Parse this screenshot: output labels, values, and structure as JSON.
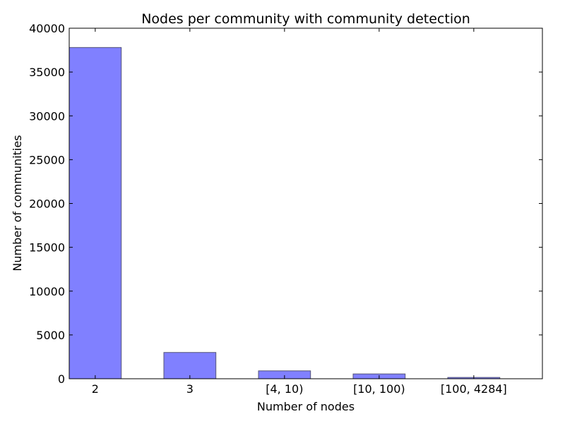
{
  "chart_data": {
    "type": "bar",
    "title": "Nodes per community with community detection",
    "xlabel": "Number of nodes",
    "ylabel": "Number of communities",
    "categories": [
      "2",
      "3",
      "[4, 10)",
      "[10, 100)",
      "[100, 4284]"
    ],
    "values": [
      37800,
      3000,
      900,
      550,
      150
    ],
    "ylim": [
      0,
      40000
    ],
    "yticks": [
      "0",
      "5000",
      "10000",
      "15000",
      "20000",
      "25000",
      "30000",
      "35000",
      "40000"
    ],
    "grid": false,
    "legend": "none",
    "colors": {
      "bar_fill": "#8080ff",
      "bar_edge": "#555577",
      "axis": "#000000"
    }
  }
}
